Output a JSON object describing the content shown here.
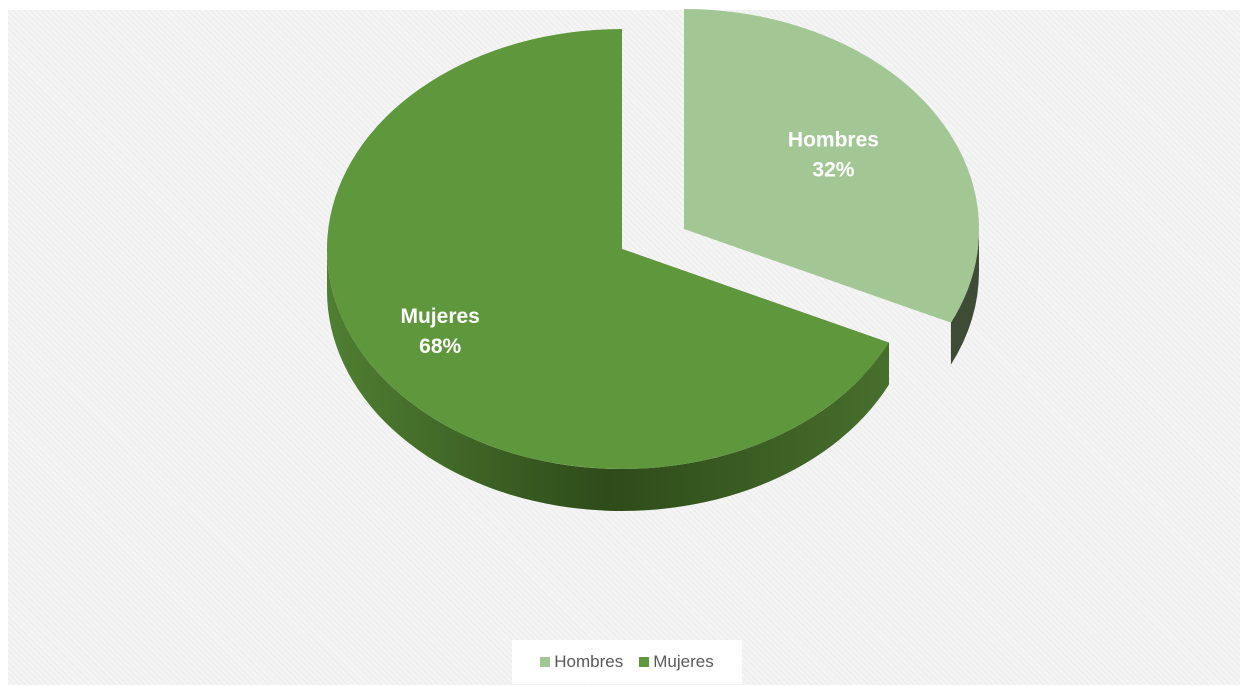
{
  "chart_data": {
    "type": "pie",
    "title": "",
    "slices": [
      {
        "label": "Hombres",
        "value": 32,
        "value_label": "32%",
        "color": "#a2c794",
        "side_color": "#3e4c36",
        "exploded": true
      },
      {
        "label": "Mujeres",
        "value": 68,
        "value_label": "68%",
        "color": "#5f973c",
        "side_color": "#385b22",
        "exploded": false
      }
    ],
    "legend": {
      "position": "bottom",
      "items": [
        {
          "label": "Hombres",
          "color": "#a2c794"
        },
        {
          "label": "Mujeres",
          "color": "#5f973c"
        }
      ]
    },
    "style": "3d-exploded",
    "background": "#f4f4f4"
  }
}
